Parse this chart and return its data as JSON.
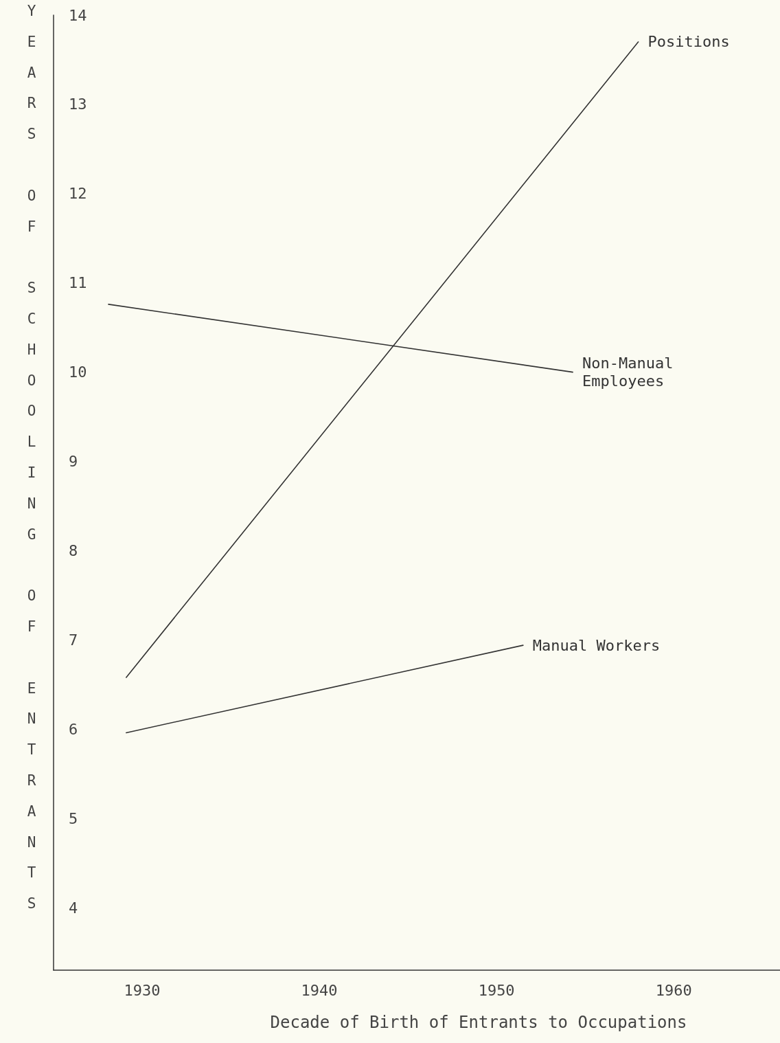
{
  "chart_data": {
    "type": "line",
    "xlabel": "Decade of Birth of Entrants to Occupations",
    "ylabel": "YEARS OF SCHOOLING OF ENTRANTS",
    "xlim": [
      1925,
      1966
    ],
    "xticks": [
      1930,
      1940,
      1950,
      1960
    ],
    "ylim": [
      3.3,
      14
    ],
    "yticks": [
      4,
      5,
      6,
      7,
      8,
      9,
      10,
      11,
      12,
      13,
      14
    ],
    "grid": false,
    "legend": false,
    "marker": "none",
    "line_style": "solid",
    "series": [
      {
        "name": "Positions",
        "color": "#333333",
        "x": [
          1929.1,
          1958
        ],
        "values": [
          6.58,
          13.7
        ]
      },
      {
        "name": "Non-Manual Employees",
        "color": "#333333",
        "x": [
          1928.1,
          1954.3
        ],
        "values": [
          10.76,
          10.0
        ]
      },
      {
        "name": "Manual Workers",
        "color": "#333333",
        "x": [
          1929.1,
          1951.5
        ],
        "values": [
          5.96,
          6.94
        ]
      }
    ]
  }
}
